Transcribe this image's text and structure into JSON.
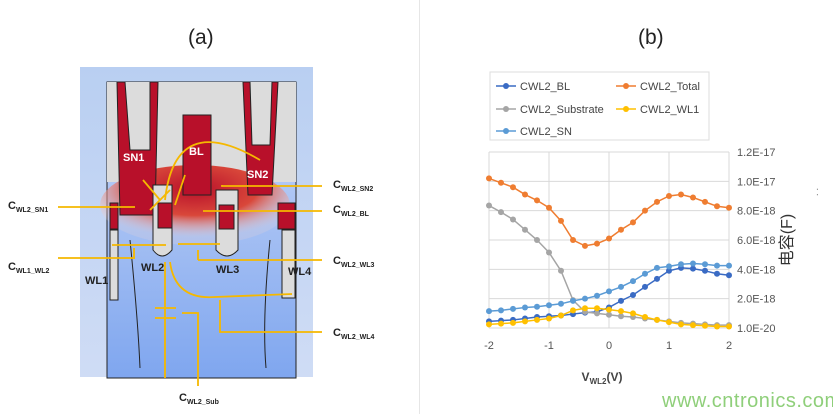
{
  "panel_a": {
    "title": "(a)",
    "region_labels": [
      "SN1",
      "BL",
      "SN2",
      "WL1",
      "WL2",
      "WL3",
      "WL4"
    ],
    "capacitance_labels": [
      {
        "main": "C",
        "sub": "WL2_SN2"
      },
      {
        "main": "C",
        "sub": "WL2_SN1"
      },
      {
        "main": "C",
        "sub": "WL2_BL"
      },
      {
        "main": "C",
        "sub": "WL1_WL2"
      },
      {
        "main": "C",
        "sub": "WL2_WL3"
      },
      {
        "main": "C",
        "sub": "WL2_WL4"
      },
      {
        "main": "C",
        "sub": "WL2_Sub"
      }
    ],
    "colors": {
      "hot": "#b8102a",
      "cold": "#8fb0ef",
      "connector": "#f5b800",
      "oxide": "#d9d9d9"
    }
  },
  "panel_b": {
    "title": "(b)"
  },
  "watermark": "www.cntronics.com",
  "chart_data": {
    "type": "line",
    "xlabel_main": "V",
    "xlabel_sub": "WL2",
    "xlabel_unit": "(V)",
    "ylabel": "电容(F)",
    "ylabel_extra": ". .",
    "xlim": [
      -2,
      2
    ],
    "ylim": [
      0,
      1.2e-17
    ],
    "x_ticks": [
      "-2",
      "-1",
      "0",
      "1",
      "2"
    ],
    "y_ticks": [
      "1.0E-20",
      "2.0E-18",
      "4.0E-18",
      "6.0E-18",
      "8.0E-18",
      "1.0E-17",
      "1.2E-17"
    ],
    "y_axis_side": "right",
    "grid": true,
    "legend_position": "top",
    "x": [
      -2,
      -1.8,
      -1.6,
      -1.4,
      -1.2,
      -1,
      -0.8,
      -0.6,
      -0.4,
      -0.2,
      0,
      0.2,
      0.4,
      0.6,
      0.8,
      1,
      1.2,
      1.4,
      1.6,
      1.8,
      2
    ],
    "series": [
      {
        "name": "CWL2_BL",
        "color": "#3a6bc4",
        "values": [
          4.5e-19,
          5e-19,
          5.5e-19,
          6.5e-19,
          7.5e-19,
          8e-19,
          8.5e-19,
          9.5e-19,
          1.05e-18,
          1.1e-18,
          1.4e-18,
          1.85e-18,
          2.25e-18,
          2.8e-18,
          3.35e-18,
          3.9e-18,
          4.1e-18,
          4.05e-18,
          3.9e-18,
          3.7e-18,
          3.6e-18
        ]
      },
      {
        "name": "CWL2_Total",
        "color": "#ef7d31",
        "values": [
          1.02e-17,
          9.9e-18,
          9.6e-18,
          9.1e-18,
          8.7e-18,
          8.2e-18,
          7.3e-18,
          6e-18,
          5.6e-18,
          5.75e-18,
          6.1e-18,
          6.7e-18,
          7.2e-18,
          8e-18,
          8.6e-18,
          9e-18,
          9.1e-18,
          8.9e-18,
          8.6e-18,
          8.3e-18,
          8.2e-18
        ]
      },
      {
        "name": "CWL2_Substrate",
        "color": "#a5a5a5",
        "values": [
          8.35e-18,
          7.9e-18,
          7.4e-18,
          6.7e-18,
          6e-18,
          5.15e-18,
          3.9e-18,
          1.9e-18,
          1.1e-18,
          1e-18,
          9e-19,
          8e-19,
          7.5e-19,
          6.5e-19,
          5.5e-19,
          4.5e-19,
          3.5e-19,
          3e-19,
          2.5e-19,
          2e-19,
          2e-19
        ]
      },
      {
        "name": "CWL2_WL1",
        "color": "#ffc000",
        "values": [
          2.5e-19,
          3e-19,
          3.5e-19,
          4.5e-19,
          5.5e-19,
          6.5e-19,
          8.5e-19,
          1.2e-18,
          1.35e-18,
          1.35e-18,
          1.25e-18,
          1.15e-18,
          1e-18,
          7.5e-19,
          5.5e-19,
          4e-19,
          2.5e-19,
          2e-19,
          1.5e-19,
          1e-19,
          1e-19
        ]
      },
      {
        "name": "CWL2_SN",
        "color": "#5b9bd5",
        "values": [
          1.15e-18,
          1.2e-18,
          1.3e-18,
          1.4e-18,
          1.45e-18,
          1.55e-18,
          1.65e-18,
          1.85e-18,
          2e-18,
          2.2e-18,
          2.5e-18,
          2.8e-18,
          3.2e-18,
          3.7e-18,
          4.1e-18,
          4.2e-18,
          4.35e-18,
          4.4e-18,
          4.35e-18,
          4.25e-18,
          4.25e-18
        ]
      }
    ]
  }
}
